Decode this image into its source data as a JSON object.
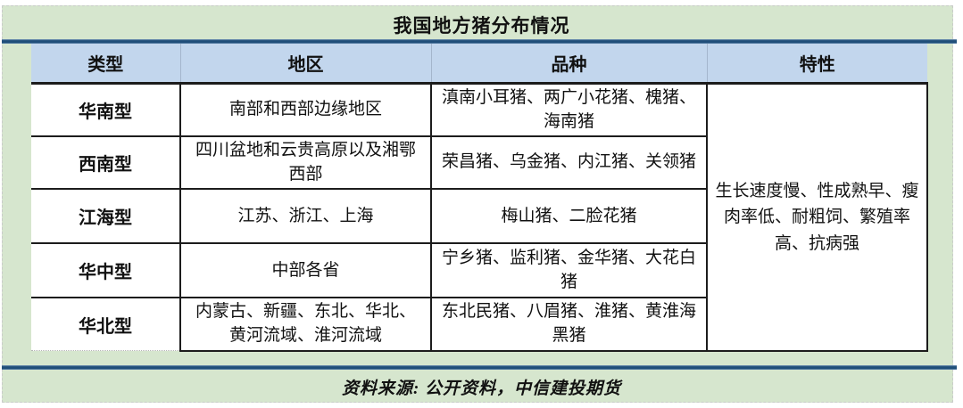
{
  "title": "我国地方猪分布情况",
  "table": {
    "headers": [
      "类型",
      "地区",
      "品种",
      "特性"
    ],
    "rows": [
      {
        "type": "华南型",
        "region": "南部和西部边缘地区",
        "breeds": "滇南小耳猪、两广小花猪、槐猪、海南猪"
      },
      {
        "type": "西南型",
        "region": "四川盆地和云贵高原以及湘鄂西部",
        "breeds": "荣昌猪、乌金猪、内江猪、关领猪"
      },
      {
        "type": "江海型",
        "region": "江苏、浙江、上海",
        "breeds": "梅山猪、二脸花猪"
      },
      {
        "type": "华中型",
        "region": "中部各省",
        "breeds": "宁乡猪、监利猪、金华猪、大花白猪"
      },
      {
        "type": "华北型",
        "region": "内蒙古、新疆、东北、华北、黄河流域、淮河流域",
        "breeds": "东北民猪、八眉猪、淮猪、黄淮海黑猪"
      }
    ],
    "traits": "生长速度慢、性成熟早、瘦肉率低、耐粗饲、繁殖率高、抗病强"
  },
  "footer": {
    "source_label": "资料来源: 公开资料，中信建投期货"
  },
  "colors": {
    "background_green": "#d6e6ce",
    "header_blue": "#c2d6ed",
    "divider_navy": "#1f4e79",
    "table_border": "#1c1c1c"
  }
}
